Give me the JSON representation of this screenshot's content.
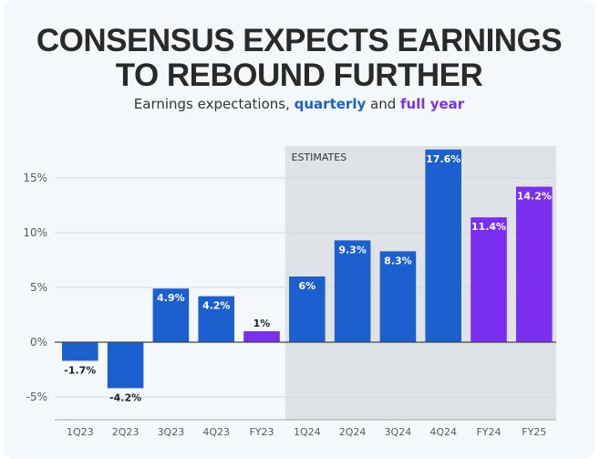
{
  "title_line1": "CONSENSUS EXPECTS EARNINGS",
  "title_line2": "TO REBOUND FURTHER",
  "subtitle": {
    "prefix": "Earnings expectations, ",
    "quarterly": "quarterly",
    "middle": " and ",
    "full_year": "full year"
  },
  "colors": {
    "quarterly": "#1c5fcf",
    "full_year": "#7a2ff0",
    "estimates_band": "#dfe3e8",
    "label_on_bar": "#ffffff",
    "label_outside": "#222222"
  },
  "chart_data": {
    "type": "bar",
    "categories": [
      "1Q23",
      "2Q23",
      "3Q23",
      "4Q23",
      "FY23",
      "1Q24",
      "2Q24",
      "3Q24",
      "4Q24",
      "FY24",
      "FY25"
    ],
    "values": [
      -1.7,
      -4.2,
      4.9,
      4.2,
      1,
      6,
      9.3,
      8.3,
      17.6,
      11.4,
      14.2
    ],
    "data_labels": [
      "-1.7%",
      "-4.2%",
      "4.9%",
      "4.2%",
      "1%",
      "6%",
      "9.3%",
      "8.3%",
      "17.6%",
      "11.4%",
      "14.2%"
    ],
    "kinds": [
      "quarterly",
      "quarterly",
      "quarterly",
      "quarterly",
      "full_year",
      "quarterly",
      "quarterly",
      "quarterly",
      "quarterly",
      "full_year",
      "full_year"
    ],
    "yticks": [
      -5,
      0,
      5,
      10,
      15
    ],
    "ytick_labels": [
      "-5%",
      "0%",
      "5%",
      "10%",
      "15%"
    ],
    "ylim": [
      -7,
      17.6
    ],
    "estimates_label": "ESTIMATES",
    "estimates_start_category": "1Q24",
    "grid": true
  }
}
